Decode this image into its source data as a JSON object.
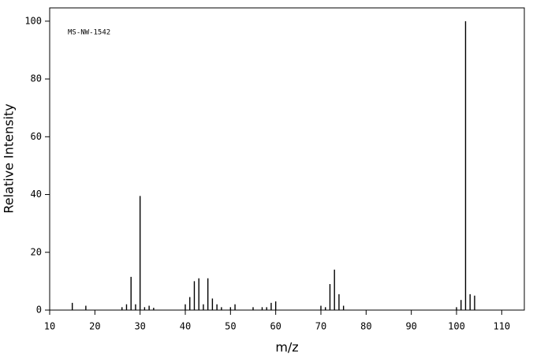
{
  "chart_data": {
    "type": "stem",
    "annotation": "MS-NW-1542",
    "xlabel": "m/z",
    "ylabel": "Relative Intensity",
    "x": [
      15,
      18,
      26,
      27,
      28,
      29,
      30,
      31,
      32,
      33,
      40,
      41,
      42,
      43,
      44,
      45,
      46,
      47,
      48,
      50,
      51,
      55,
      57,
      58,
      59,
      60,
      70,
      71,
      72,
      73,
      74,
      75,
      100,
      101,
      102,
      103,
      104
    ],
    "values": [
      2.5,
      1.5,
      1,
      2,
      11.5,
      2,
      39.5,
      1,
      1.5,
      0.8,
      2,
      4.5,
      10,
      11,
      2,
      11,
      4,
      2,
      1,
      1,
      2,
      1,
      1,
      1,
      2.5,
      3,
      1.5,
      1,
      9,
      14,
      5.5,
      1.5,
      1,
      3.5,
      100,
      5.5,
      5
    ],
    "color": "#000000",
    "xlim": [
      10,
      115
    ],
    "xticks": [
      10,
      20,
      30,
      40,
      50,
      60,
      70,
      80,
      90,
      100,
      110
    ],
    "ylim": [
      0,
      104.6
    ],
    "yticks": [
      0,
      20,
      40,
      60,
      80,
      100
    ]
  }
}
